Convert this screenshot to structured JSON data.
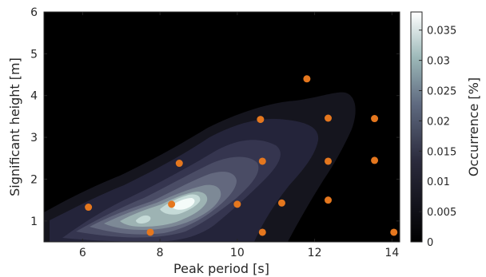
{
  "chart_data": {
    "type": "contourf+scatter",
    "xlabel": "Peak period [s]",
    "ylabel": "Significant height [m]",
    "xlim": [
      5,
      14.2
    ],
    "ylim": [
      0.5,
      6
    ],
    "xticks": [
      6,
      8,
      10,
      12,
      14
    ],
    "yticks": [
      1,
      2,
      3,
      4,
      5,
      6
    ],
    "colorbar": {
      "label": "Occurrence [%]",
      "range": [
        0,
        0.038
      ],
      "ticks": [
        0,
        0.005,
        0.01,
        0.015,
        0.02,
        0.025,
        0.03,
        0.035
      ],
      "tick_labels": [
        "0",
        "0.005",
        "0.01",
        "0.015",
        "0.02",
        "0.025",
        "0.03",
        "0.035"
      ],
      "colormap": "bone"
    },
    "contour_peak": {
      "x": 8.6,
      "y": 1.5,
      "value": 0.038
    },
    "scatter": {
      "color": "#e5771e",
      "points": [
        {
          "x": 6.15,
          "y": 1.33
        },
        {
          "x": 7.75,
          "y": 0.73
        },
        {
          "x": 8.3,
          "y": 1.4
        },
        {
          "x": 8.5,
          "y": 2.38
        },
        {
          "x": 10.0,
          "y": 1.4
        },
        {
          "x": 10.6,
          "y": 3.43
        },
        {
          "x": 10.65,
          "y": 2.43
        },
        {
          "x": 10.65,
          "y": 0.73
        },
        {
          "x": 11.15,
          "y": 1.43
        },
        {
          "x": 11.8,
          "y": 4.4
        },
        {
          "x": 12.35,
          "y": 3.46
        },
        {
          "x": 12.35,
          "y": 2.43
        },
        {
          "x": 12.35,
          "y": 1.5
        },
        {
          "x": 13.55,
          "y": 3.45
        },
        {
          "x": 13.55,
          "y": 2.45
        },
        {
          "x": 14.05,
          "y": 0.73
        }
      ]
    }
  }
}
